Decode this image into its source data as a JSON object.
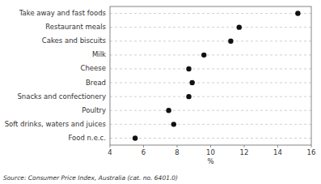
{
  "chart_data": {
    "type": "dot",
    "categories": [
      "Food n.e.c.",
      "Soft drinks, waters and juices",
      "Poultry",
      "Snacks and confectionery",
      "Bread",
      "Cheese",
      "Milk",
      "Cakes and biscuits",
      "Restaurant meals",
      "Take away and fast foods"
    ],
    "values": [
      5.5,
      7.8,
      7.5,
      8.7,
      8.9,
      8.7,
      9.6,
      11.2,
      11.7,
      15.2
    ],
    "color": "#111111",
    "xlim": [
      4,
      16
    ],
    "xticks": [
      4,
      6,
      8,
      10,
      12,
      14,
      16
    ],
    "xlabel": "%",
    "annotation": "Source: Consumer Price Index, Australia  (cat.  no.  6401.0)",
    "grid": true
  }
}
